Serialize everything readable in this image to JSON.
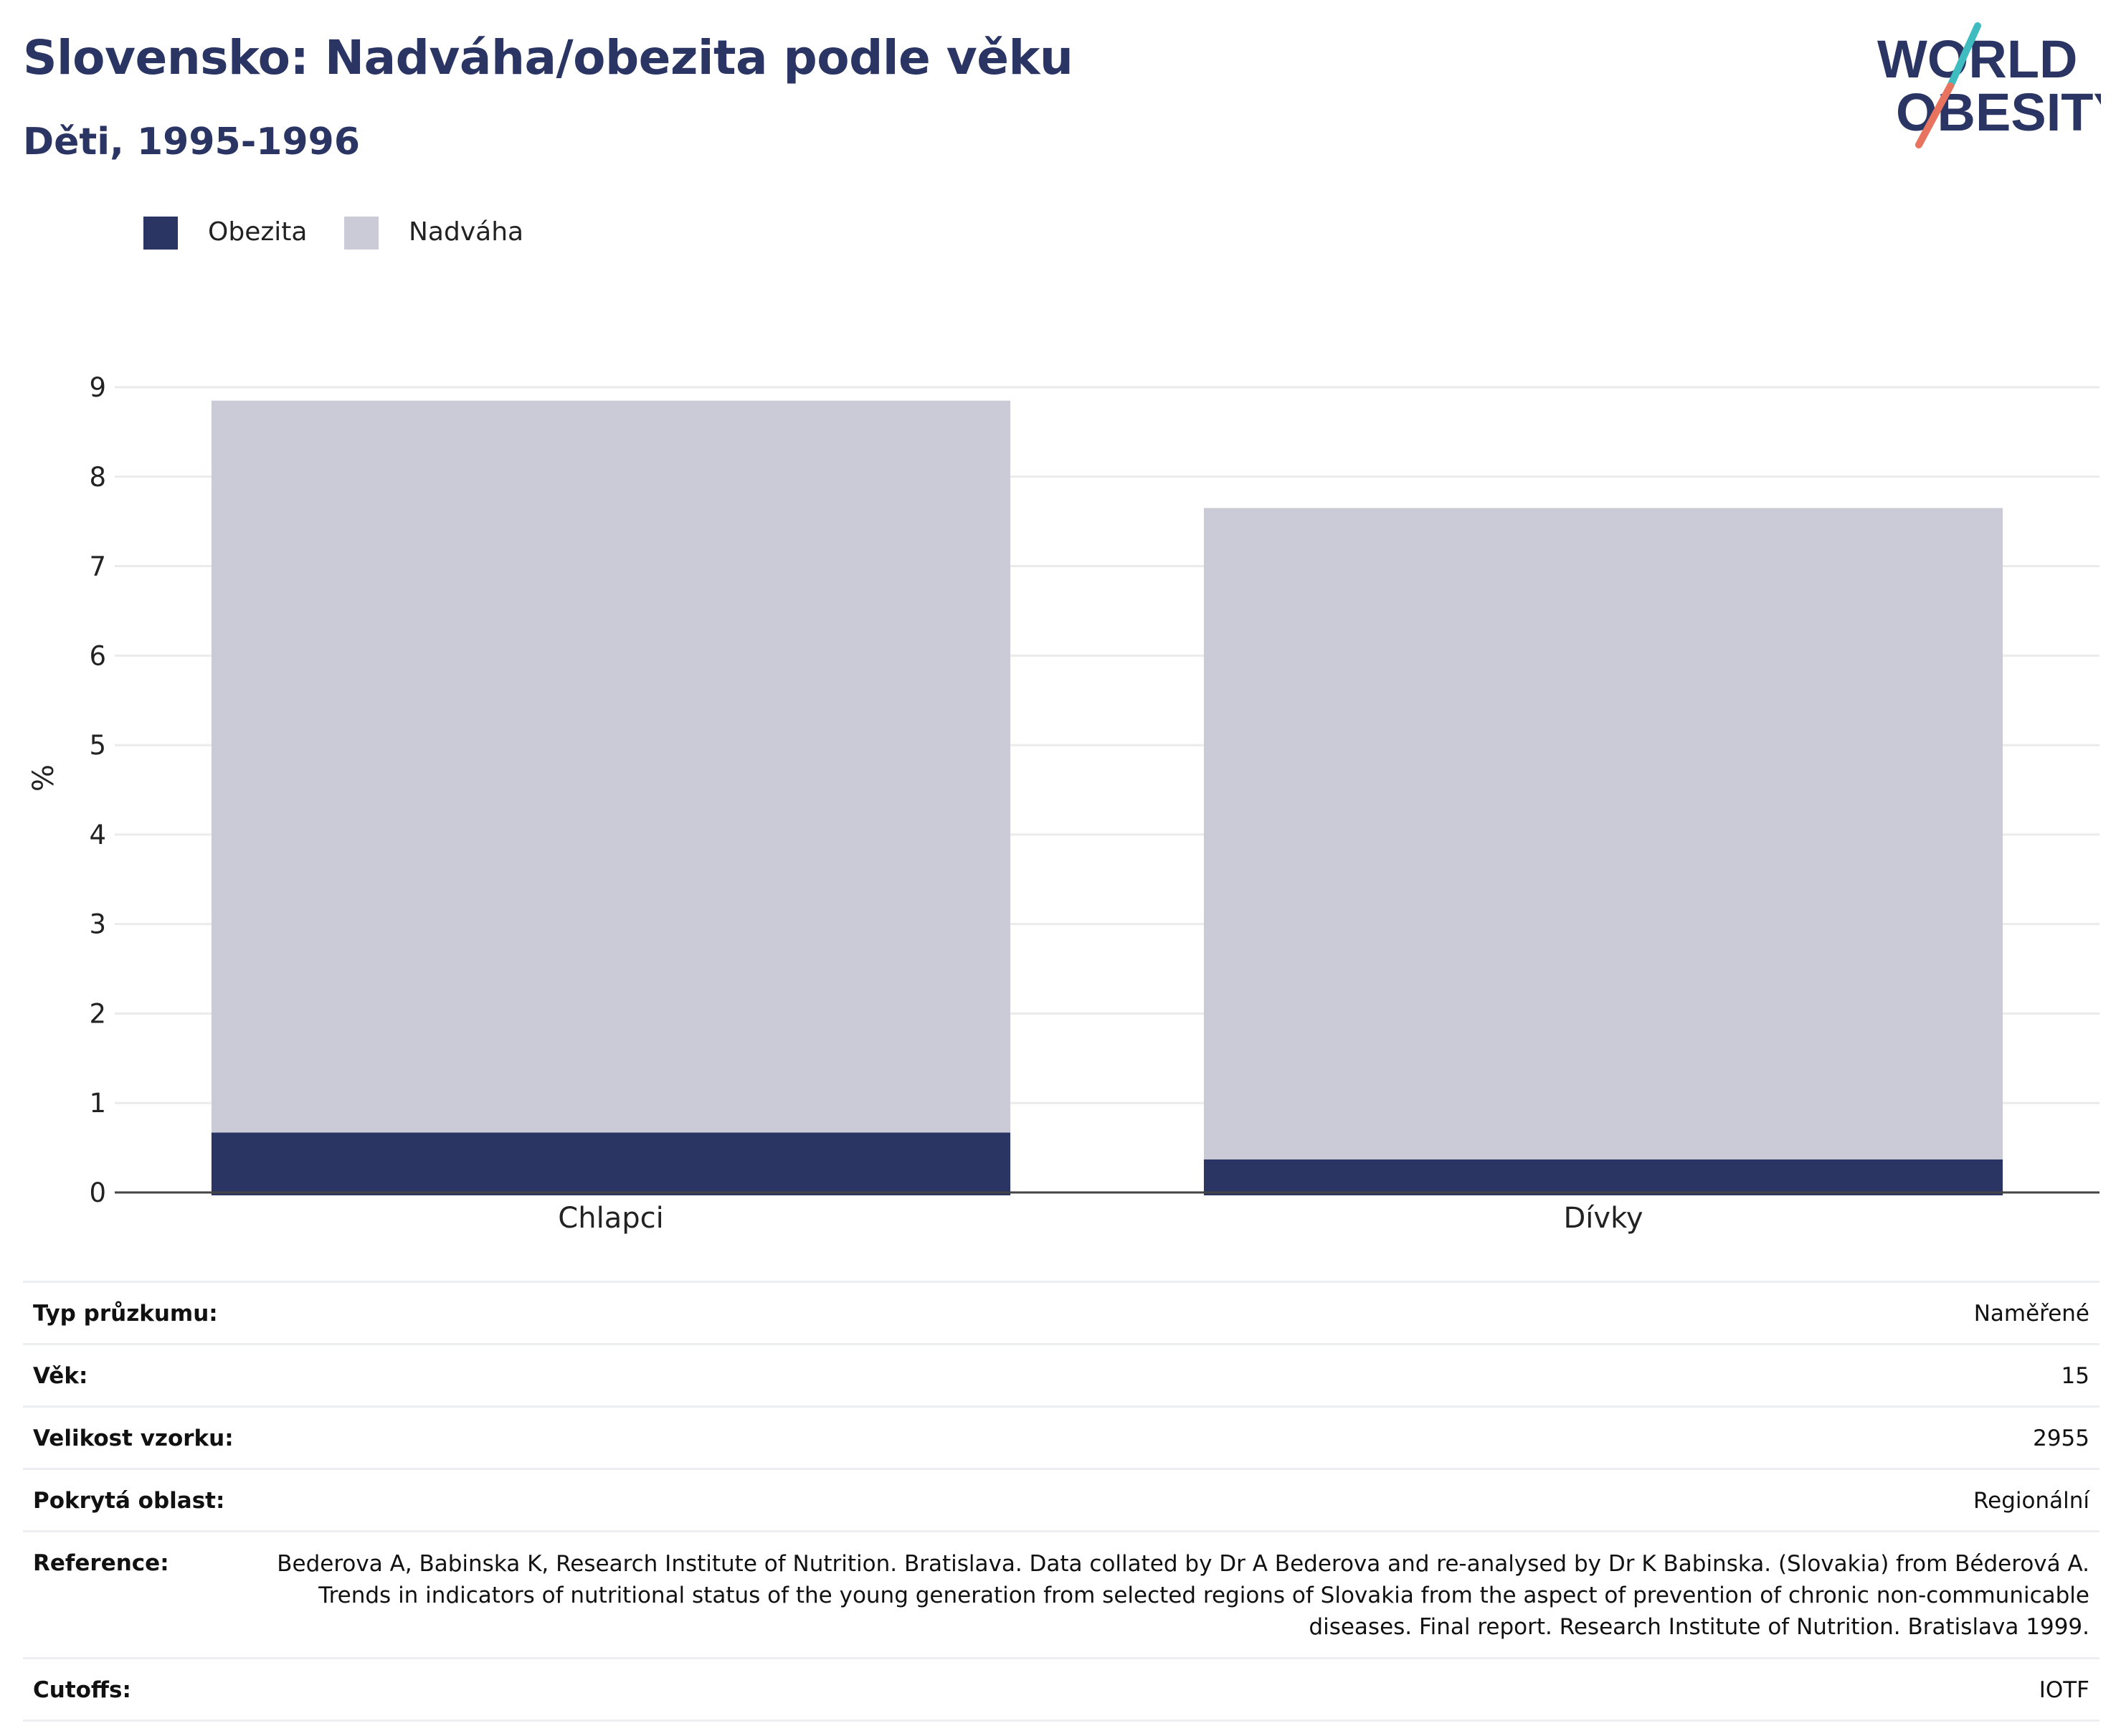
{
  "header": {
    "title": "Slovensko: Nadváha/obezita podle věku",
    "subtitle": "Děti, 1995-1996"
  },
  "logo": {
    "line1": "WORLD",
    "line2": "OBESITY"
  },
  "colors": {
    "obezita": "#2a3564",
    "nadvaha": "#cacbd6",
    "grid": "#ebebeb",
    "axis": "#444444",
    "logo_teal": "#3fbcbf",
    "logo_coral": "#e8735f"
  },
  "legend": [
    {
      "label": "Obezita",
      "color": "#2a3564"
    },
    {
      "label": "Nadváha",
      "color": "#cacbd6"
    }
  ],
  "chart_data": {
    "type": "bar",
    "stacked": true,
    "categories": [
      "Chlapci",
      "Dívky"
    ],
    "series": [
      {
        "name": "Obezita",
        "values": [
          0.67,
          0.37
        ]
      },
      {
        "name": "Nadváha",
        "values": [
          8.18,
          7.28
        ]
      }
    ],
    "ylabel": "%",
    "ylim": [
      0,
      9
    ],
    "yticks": [
      0,
      1,
      2,
      3,
      4,
      5,
      6,
      7,
      8,
      9
    ],
    "grid": true,
    "legend_position": "top-left"
  },
  "info": [
    {
      "key": "Typ průzkumu:",
      "value": "Naměřené"
    },
    {
      "key": "Věk:",
      "value": "15"
    },
    {
      "key": "Velikost vzorku:",
      "value": "2955"
    },
    {
      "key": "Pokrytá oblast:",
      "value": "Regionální"
    },
    {
      "key": "Reference:",
      "value": "Bederova A, Babinska K, Research Institute of Nutrition. Bratislava. Data collated by Dr A Bederova and re-analysed by Dr K Babinska. (Slovakia) from Béderová A. Trends in indicators of nutritional status of the young generation from selected regions of Slovakia from the aspect of prevention of chronic non-communicable diseases. Final report. Research Institute of Nutrition. Bratislava 1999."
    },
    {
      "key": "Cutoffs:",
      "value": "IOTF"
    }
  ]
}
